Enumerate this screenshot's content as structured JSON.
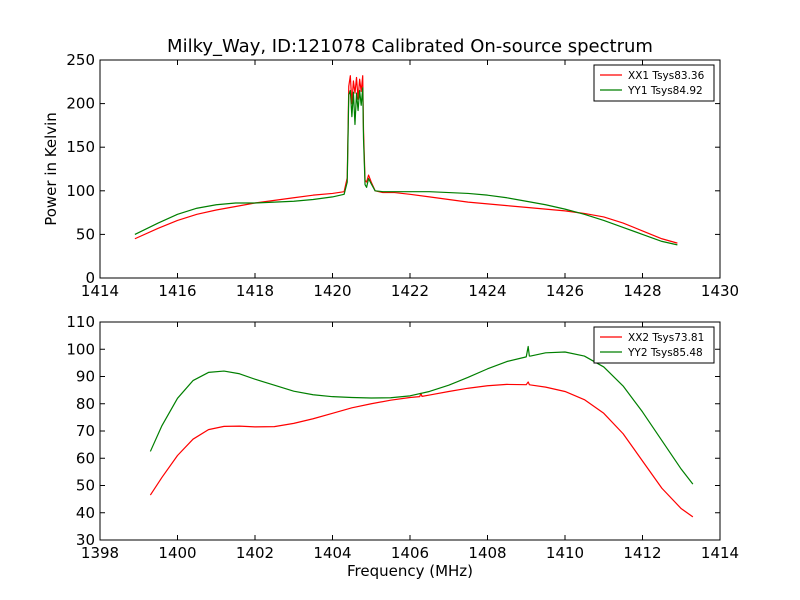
{
  "page_title": "Milky_Way, ID:121078 Calibrated On-source spectrum",
  "colors": {
    "red": "#ff0000",
    "green": "#007f00"
  },
  "chart_data": [
    {
      "type": "line",
      "title": "Milky_Way, ID:121078 Calibrated On-source spectrum",
      "xlabel": "",
      "ylabel": "Power in Kelvin",
      "xlim": [
        1414,
        1430
      ],
      "ylim": [
        0,
        250
      ],
      "xticks": [
        "1414",
        "1416",
        "1418",
        "1420",
        "1422",
        "1424",
        "1426",
        "1428",
        "1430"
      ],
      "yticks": [
        "0",
        "50",
        "100",
        "150",
        "200",
        "250"
      ],
      "legend_placement": "top-right",
      "grid": false,
      "series": [
        {
          "name": "XX1 Tsys83.36",
          "color": "#ff0000",
          "x": [
            1414.9,
            1415.5,
            1416.0,
            1416.5,
            1417.0,
            1417.5,
            1418.0,
            1418.5,
            1419.0,
            1419.5,
            1420.0,
            1420.3,
            1420.38,
            1420.42,
            1420.46,
            1420.5,
            1420.54,
            1420.58,
            1420.62,
            1420.66,
            1420.7,
            1420.74,
            1420.78,
            1420.8,
            1420.84,
            1420.88,
            1420.93,
            1421.0,
            1421.1,
            1421.3,
            1421.6,
            1422.0,
            1422.5,
            1423.0,
            1423.5,
            1424.0,
            1424.5,
            1425.0,
            1425.5,
            1426.0,
            1426.5,
            1427.0,
            1427.5,
            1428.0,
            1428.5,
            1428.9
          ],
          "y": [
            45,
            57,
            66,
            73,
            78,
            82,
            86,
            89,
            92,
            95,
            97,
            99,
            115,
            220,
            232,
            200,
            226,
            212,
            230,
            205,
            228,
            214,
            232,
            170,
            112,
            110,
            118,
            110,
            100,
            98,
            98,
            96,
            93,
            90,
            87,
            85,
            83,
            81,
            79,
            77,
            74,
            70,
            63,
            54,
            45,
            40
          ]
        },
        {
          "name": "YY1 Tsys84.92",
          "color": "#007f00",
          "x": [
            1414.9,
            1415.5,
            1416.0,
            1416.5,
            1417.0,
            1417.5,
            1418.0,
            1418.5,
            1419.0,
            1419.5,
            1420.0,
            1420.3,
            1420.38,
            1420.42,
            1420.46,
            1420.5,
            1420.54,
            1420.58,
            1420.62,
            1420.66,
            1420.7,
            1420.74,
            1420.78,
            1420.8,
            1420.84,
            1420.88,
            1420.93,
            1421.0,
            1421.1,
            1421.3,
            1421.6,
            1422.0,
            1422.5,
            1423.0,
            1423.5,
            1424.0,
            1424.5,
            1425.0,
            1425.5,
            1426.0,
            1426.5,
            1427.0,
            1427.5,
            1428.0,
            1428.5,
            1428.9
          ],
          "y": [
            50,
            63,
            73,
            80,
            84,
            86,
            86,
            87,
            88,
            90,
            93,
            96,
            110,
            210,
            215,
            185,
            213,
            176,
            212,
            192,
            215,
            198,
            218,
            160,
            107,
            104,
            114,
            108,
            100,
            99,
            99,
            99,
            99,
            98,
            97,
            95,
            92,
            88,
            84,
            79,
            73,
            66,
            58,
            50,
            42,
            38
          ]
        }
      ]
    },
    {
      "type": "line",
      "title": "",
      "xlabel": "Frequency (MHz)",
      "ylabel": "",
      "xlim": [
        1398,
        1414
      ],
      "ylim": [
        30,
        110
      ],
      "xticks": [
        "1398",
        "1400",
        "1402",
        "1404",
        "1406",
        "1408",
        "1410",
        "1412",
        "1414"
      ],
      "yticks": [
        "30",
        "40",
        "50",
        "60",
        "70",
        "80",
        "90",
        "100",
        "110"
      ],
      "legend_placement": "top-right",
      "grid": false,
      "series": [
        {
          "name": "XX2 Tsys73.81",
          "color": "#ff0000",
          "x": [
            1399.3,
            1399.6,
            1400.0,
            1400.4,
            1400.8,
            1401.2,
            1401.6,
            1402.0,
            1402.5,
            1403.0,
            1403.5,
            1404.0,
            1404.5,
            1405.0,
            1405.5,
            1406.0,
            1406.25,
            1406.28,
            1406.31,
            1406.5,
            1407.0,
            1407.5,
            1408.0,
            1408.5,
            1409.0,
            1409.05,
            1409.08,
            1409.11,
            1409.5,
            1410.0,
            1410.5,
            1411.0,
            1411.5,
            1412.0,
            1412.5,
            1413.0,
            1413.3
          ],
          "y": [
            46.5,
            53,
            61,
            67,
            70.5,
            71.7,
            71.8,
            71.5,
            71.6,
            72.8,
            74.5,
            76.5,
            78.5,
            80,
            81.3,
            82.3,
            82.6,
            83.8,
            82.7,
            83.2,
            84.5,
            85.7,
            86.6,
            87.1,
            87,
            88,
            87,
            86.9,
            86.1,
            84.5,
            81.5,
            76.5,
            69,
            59,
            49,
            41.5,
            38.5
          ]
        },
        {
          "name": "YY2 Tsys85.48",
          "color": "#007f00",
          "x": [
            1399.3,
            1399.6,
            1400.0,
            1400.4,
            1400.8,
            1401.2,
            1401.6,
            1402.0,
            1402.5,
            1403.0,
            1403.5,
            1404.0,
            1404.5,
            1405.0,
            1405.5,
            1406.0,
            1406.5,
            1407.0,
            1407.5,
            1408.0,
            1408.5,
            1409.0,
            1409.05,
            1409.08,
            1409.11,
            1409.5,
            1410.0,
            1410.5,
            1411.0,
            1411.5,
            1412.0,
            1412.5,
            1413.0,
            1413.3
          ],
          "y": [
            62.5,
            72,
            82,
            88.5,
            91.5,
            92,
            91,
            89,
            86.8,
            84.6,
            83.3,
            82.6,
            82.3,
            82.1,
            82.2,
            82.9,
            84.5,
            86.8,
            89.7,
            92.8,
            95.5,
            97.2,
            101,
            97.5,
            97.5,
            98.7,
            99,
            97.5,
            93.5,
            86.5,
            77,
            66.5,
            56,
            50.5
          ]
        }
      ]
    }
  ]
}
